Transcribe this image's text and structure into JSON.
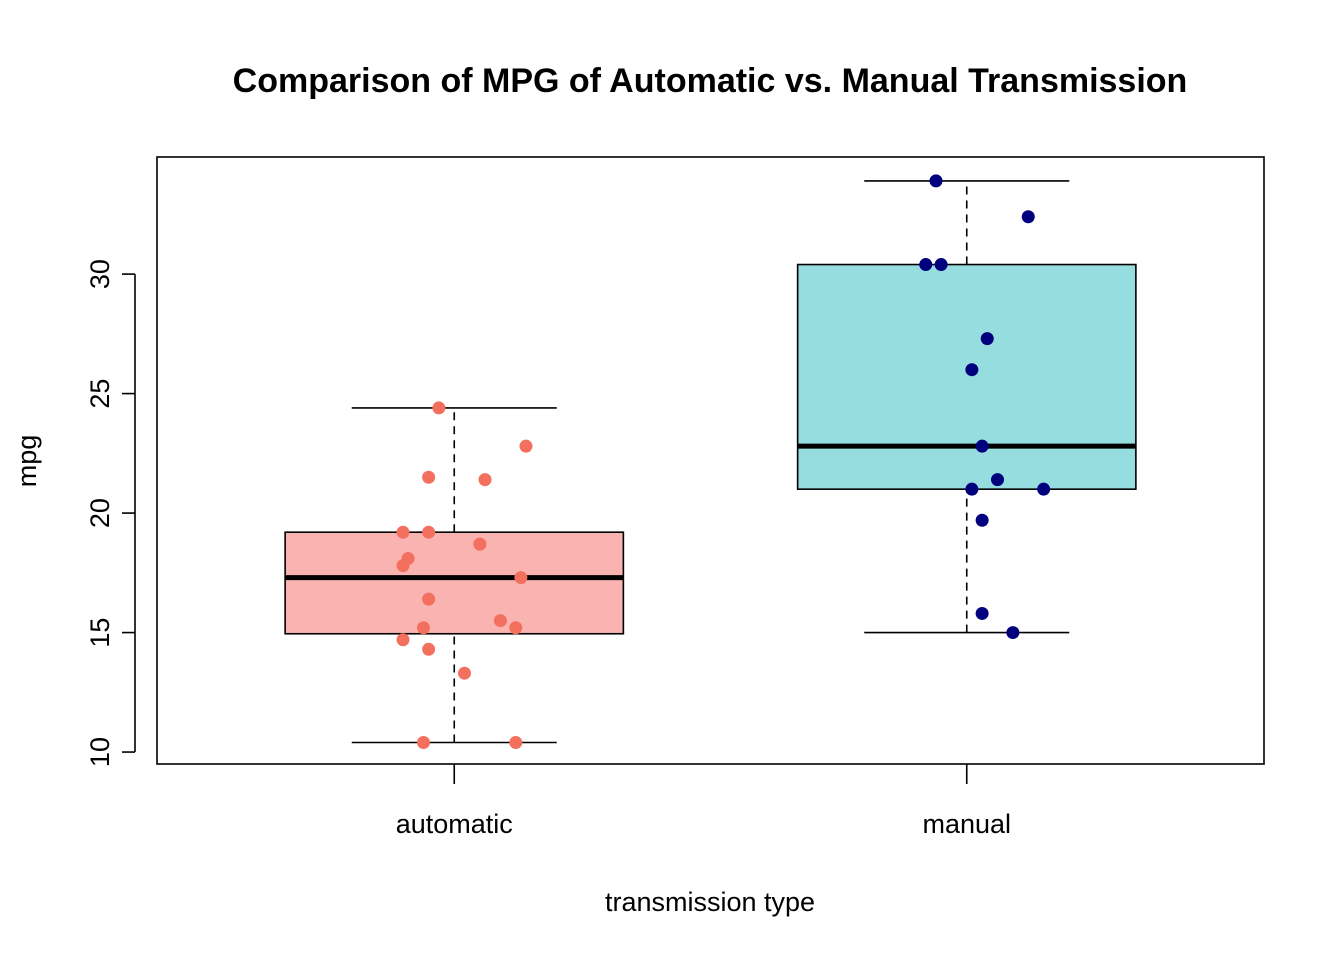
{
  "chart_data": {
    "type": "box",
    "title": "Comparison of MPG of Automatic vs. Manual Transmission",
    "xlabel": "transmission type",
    "ylabel": "mpg",
    "ylim": [
      9.5,
      34.9
    ],
    "yticks": [
      10,
      15,
      20,
      25,
      30
    ],
    "categories": [
      "automatic",
      "manual"
    ],
    "boxes": [
      {
        "name": "automatic",
        "fill": "#F9B3B0",
        "point_color": "#F3705F",
        "whisker_low": 10.4,
        "q1": 14.95,
        "median": 17.3,
        "q3": 19.2,
        "whisker_high": 24.4,
        "points": [
          {
            "x": 0.97,
            "y": 24.4
          },
          {
            "x": 1.14,
            "y": 22.8
          },
          {
            "x": 0.95,
            "y": 21.5
          },
          {
            "x": 1.06,
            "y": 21.4
          },
          {
            "x": 0.9,
            "y": 19.2
          },
          {
            "x": 0.95,
            "y": 19.2
          },
          {
            "x": 1.05,
            "y": 18.7
          },
          {
            "x": 0.91,
            "y": 18.1
          },
          {
            "x": 0.9,
            "y": 17.8
          },
          {
            "x": 1.13,
            "y": 17.3
          },
          {
            "x": 0.95,
            "y": 16.4
          },
          {
            "x": 1.09,
            "y": 15.5
          },
          {
            "x": 0.94,
            "y": 15.2
          },
          {
            "x": 1.12,
            "y": 15.2
          },
          {
            "x": 0.9,
            "y": 14.7
          },
          {
            "x": 0.95,
            "y": 14.3
          },
          {
            "x": 1.02,
            "y": 13.3
          },
          {
            "x": 0.94,
            "y": 10.4
          },
          {
            "x": 1.12,
            "y": 10.4
          }
        ]
      },
      {
        "name": "manual",
        "fill": "#96DDE0",
        "point_color": "#00007F",
        "whisker_low": 15.0,
        "q1": 21.0,
        "median": 22.8,
        "q3": 30.4,
        "whisker_high": 33.9,
        "points": [
          {
            "x": 1.94,
            "y": 33.9
          },
          {
            "x": 2.12,
            "y": 32.4
          },
          {
            "x": 1.92,
            "y": 30.4
          },
          {
            "x": 1.95,
            "y": 30.4
          },
          {
            "x": 2.04,
            "y": 27.3
          },
          {
            "x": 2.01,
            "y": 26.0
          },
          {
            "x": 2.03,
            "y": 22.8
          },
          {
            "x": 2.06,
            "y": 21.4
          },
          {
            "x": 2.01,
            "y": 21.0
          },
          {
            "x": 2.15,
            "y": 21.0
          },
          {
            "x": 2.03,
            "y": 19.7
          },
          {
            "x": 2.03,
            "y": 15.8
          },
          {
            "x": 2.09,
            "y": 15.0
          }
        ]
      }
    ],
    "grid": false,
    "legend": "none"
  }
}
